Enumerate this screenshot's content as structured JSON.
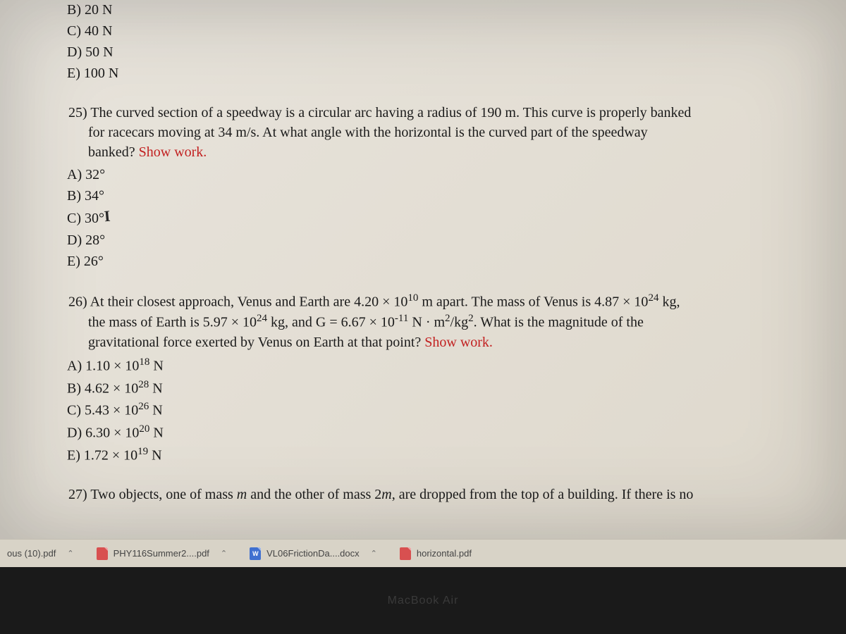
{
  "prev_question_options": {
    "B": "B) 20 N",
    "C": "C) 40 N",
    "D": "D) 50 N",
    "E": "E) 100 N"
  },
  "q25": {
    "number": "25)",
    "text_line1": "The curved section of a speedway is a circular arc having a radius of 190 m. This curve is properly banked",
    "text_line2": "for racecars moving at 34 m/s.  At what angle with the horizontal is the curved part of the speedway",
    "text_line3": "banked? ",
    "show_work": "Show work.",
    "options": {
      "A": "A) 32°",
      "B": "B) 34°",
      "C_prefix": "C) 30°",
      "C_hand": "I",
      "D": "D) 28°",
      "E": "E) 26°"
    }
  },
  "q26": {
    "number": "26)",
    "text_line1_a": "At their closest approach, Venus and Earth are 4.20 × 10",
    "text_line1_exp1": "10",
    "text_line1_b": " m apart. The mass of Venus is 4.87 × 10",
    "text_line1_exp2": "24",
    "text_line1_c": " kg,",
    "text_line2_a": "the mass of Earth is 5.97 × 10",
    "text_line2_exp1": "24",
    "text_line2_b": " kg, and G = 6.67 × 10",
    "text_line2_exp2": "-11",
    "text_line2_c": " N · m",
    "text_line2_exp3": "2",
    "text_line2_d": "/kg",
    "text_line2_exp4": "2",
    "text_line2_e": ". What is the magnitude of the",
    "text_line3": "gravitational force exerted by Venus on Earth at that point? ",
    "show_work": "Show work.",
    "options": {
      "A_pre": "A) 1.10 × 10",
      "A_exp": "18",
      "A_post": " N",
      "B_pre": "B) 4.62 × 10",
      "B_exp": "28",
      "B_post": " N",
      "C_pre": "C) 5.43 × 10",
      "C_exp": "26",
      "C_post": " N",
      "D_pre": "D) 6.30 × 10",
      "D_exp": "20",
      "D_post": " N",
      "E_pre": "E) 1.72 × 10",
      "E_exp": "19",
      "E_post": " N"
    }
  },
  "q27": {
    "number": "27)",
    "text": "Two objects, one of mass m and the other of mass 2m, are dropped from the top of a building. If there is no"
  },
  "downloads": {
    "item1": "ous (10).pdf",
    "item2": "PHY116Summer2....pdf",
    "item3": "VL06FrictionDa....docx",
    "item4": "horizontal.pdf"
  },
  "device_label": "MacBook Air",
  "colors": {
    "page_bg": "#e8e4dc",
    "text": "#1a1a1a",
    "show_work": "#c22020",
    "bar_bg": "#d8d3c7"
  }
}
